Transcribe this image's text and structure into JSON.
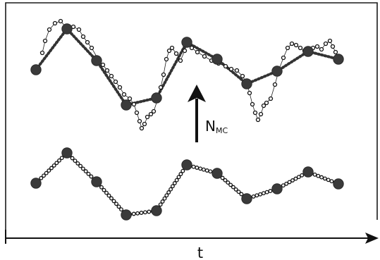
{
  "labels": {
    "x_axis": "t",
    "arrow_main": "N",
    "arrow_sub": "MC"
  },
  "colors": {
    "line": "#1a1a1a",
    "coarse_point": "#3a3a3a",
    "fine_point_fill": "#ffffff"
  }
}
